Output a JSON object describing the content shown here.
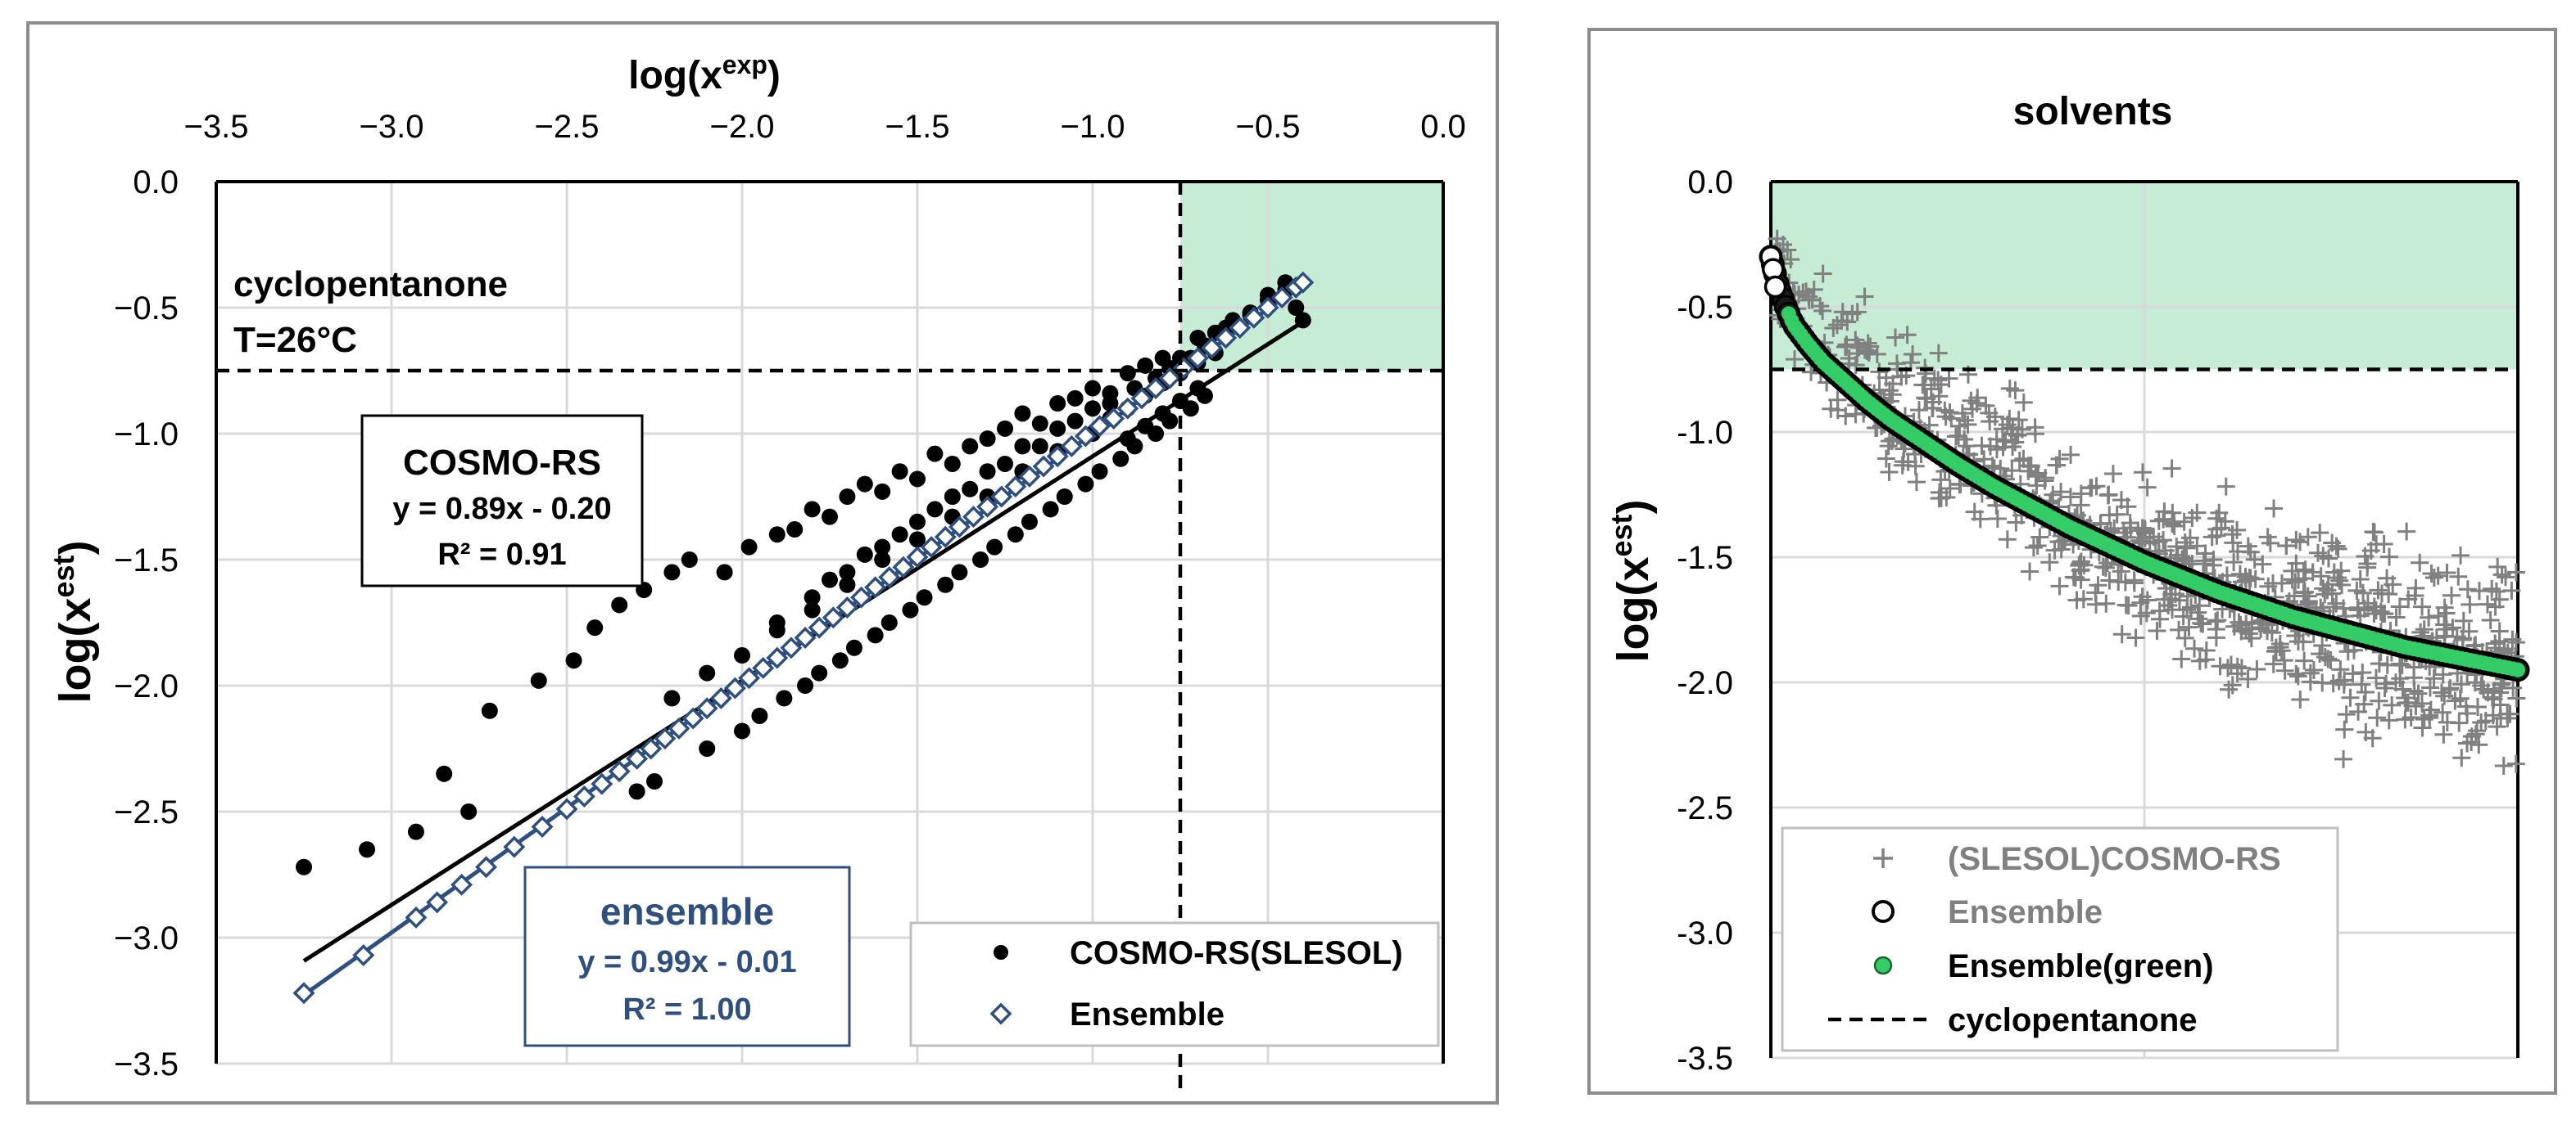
{
  "chart_data": [
    {
      "type": "scatter",
      "title": "",
      "xlabel": "log(x^exp)",
      "ylabel": "log(x^est)",
      "xlim": [
        -3.5,
        0.0
      ],
      "ylim": [
        -3.5,
        0.0
      ],
      "x_axis_position": "top",
      "x_tick_labels": [
        "−3.5",
        "−3.0",
        "−2.5",
        "−2.0",
        "−1.5",
        "−1.0",
        "−0.5",
        "0.0"
      ],
      "y_tick_labels": [
        "0.0",
        "−0.5",
        "−1.0",
        "−1.5",
        "−2.0",
        "−2.5",
        "−3.0",
        "−3.5"
      ],
      "x_ticks": [
        -3.5,
        -3.0,
        -2.5,
        -2.0,
        -1.5,
        -1.0,
        -0.5,
        0.0
      ],
      "y_ticks": [
        0.0,
        -0.5,
        -1.0,
        -1.5,
        -2.0,
        -2.5,
        -3.0,
        -3.5
      ],
      "threshold": {
        "x": -0.75,
        "y": -0.75,
        "style": "dashed",
        "shaded_region_color": "#c6ecd6"
      },
      "annotation": {
        "line1": "cyclopentanone",
        "line2": "T=26°C"
      },
      "fit_boxes": [
        {
          "name": "COSMO-RS",
          "equation": "y = 0.89x - 0.20",
          "r2": "R² = 0.91",
          "slope": 0.89,
          "intercept": -0.2,
          "color": "#000000"
        },
        {
          "name": "ensemble",
          "equation": "y = 0.99x - 0.01",
          "r2": "R² = 1.00",
          "slope": 0.99,
          "intercept": -0.01,
          "color": "#2f4f7f"
        }
      ],
      "series": [
        {
          "name": "COSMO-RS(SLESOL)",
          "marker": "filled-circle",
          "color": "#000000",
          "x": [
            -3.25,
            -3.07,
            -2.93,
            -2.85,
            -2.78,
            -2.72,
            -2.58,
            -2.48,
            -2.42,
            -2.35,
            -2.28,
            -2.2,
            -2.15,
            -2.05,
            -1.98,
            -1.9,
            -1.85,
            -1.8,
            -1.75,
            -1.7,
            -1.65,
            -1.6,
            -1.55,
            -1.5,
            -1.45,
            -1.4,
            -1.35,
            -1.3,
            -1.25,
            -1.2,
            -1.15,
            -1.1,
            -1.05,
            -1.0,
            -0.95,
            -0.9,
            -0.85,
            -0.8,
            -0.75,
            -0.7,
            -0.65,
            -0.6,
            -0.55,
            -0.5,
            -0.45,
            -2.3,
            -2.25,
            -2.1,
            -2.0,
            -1.95,
            -1.88,
            -1.82,
            -1.78,
            -1.72,
            -1.68,
            -1.62,
            -1.58,
            -1.52,
            -1.48,
            -1.42,
            -1.38,
            -1.32,
            -1.28,
            -1.22,
            -1.18,
            -1.12,
            -1.08,
            -1.02,
            -0.98,
            -0.92,
            -0.88,
            -0.82,
            -0.78,
            -0.72,
            -0.68,
            -1.9,
            -1.8,
            -1.7,
            -1.6,
            -1.5,
            -1.4,
            -1.3,
            -1.2,
            -1.1,
            -1.0,
            -0.9,
            -0.85,
            -0.8,
            -0.75,
            -0.7,
            -2.2,
            -2.1,
            -2.0,
            -1.9,
            -1.8,
            -1.7,
            -1.6,
            -1.5,
            -1.4,
            -1.3,
            -1.2,
            -1.1,
            -1.0,
            -0.95,
            -0.9,
            -0.85,
            -0.8,
            -0.75,
            -0.7,
            -0.65,
            -1.75,
            -1.65,
            -1.55,
            -1.45,
            -1.35,
            -1.25,
            -1.15,
            -1.05,
            -0.95,
            -0.88,
            -0.82,
            -0.78,
            -0.72,
            -0.68,
            -0.62,
            -0.55,
            -0.5,
            -0.45,
            -0.42,
            -0.4
          ],
          "y": [
            -2.72,
            -2.65,
            -2.58,
            -2.35,
            -2.5,
            -2.1,
            -1.98,
            -1.9,
            -1.77,
            -1.68,
            -1.62,
            -1.55,
            -1.5,
            -1.55,
            -1.45,
            -1.4,
            -1.38,
            -1.3,
            -1.33,
            -1.25,
            -1.2,
            -1.23,
            -1.15,
            -1.18,
            -1.08,
            -1.12,
            -1.05,
            -1.02,
            -0.98,
            -0.92,
            -0.96,
            -0.88,
            -0.86,
            -0.82,
            -0.84,
            -0.76,
            -0.73,
            -0.7,
            -0.7,
            -0.62,
            -0.6,
            -0.55,
            -0.53,
            -0.47,
            -0.43,
            -2.42,
            -2.38,
            -2.25,
            -2.18,
            -2.12,
            -2.05,
            -2.0,
            -1.95,
            -1.9,
            -1.85,
            -1.8,
            -1.75,
            -1.7,
            -1.65,
            -1.6,
            -1.55,
            -1.5,
            -1.45,
            -1.4,
            -1.35,
            -1.3,
            -1.25,
            -1.2,
            -1.15,
            -1.1,
            -1.05,
            -1.0,
            -0.95,
            -0.9,
            -0.85,
            -1.75,
            -1.65,
            -1.55,
            -1.45,
            -1.35,
            -1.25,
            -1.15,
            -1.05,
            -0.98,
            -0.9,
            -1.02,
            -0.97,
            -0.92,
            -0.87,
            -0.82,
            -2.05,
            -1.95,
            -1.88,
            -1.78,
            -1.7,
            -1.6,
            -1.5,
            -1.42,
            -1.33,
            -1.25,
            -1.15,
            -1.07,
            -1.0,
            -0.94,
            -0.9,
            -0.85,
            -0.8,
            -0.76,
            -0.72,
            -0.68,
            -1.58,
            -1.48,
            -1.4,
            -1.3,
            -1.22,
            -1.12,
            -1.05,
            -0.95,
            -0.88,
            -0.82,
            -0.78,
            -0.74,
            -0.7,
            -0.65,
            -0.58,
            -0.52,
            -0.45,
            -0.4,
            -0.5,
            -0.55
          ]
        },
        {
          "name": "Ensemble",
          "marker": "open-diamond",
          "color": "#2f4f7f",
          "x": [
            -3.25,
            -3.08,
            -2.93,
            -2.87,
            -2.8,
            -2.73,
            -2.65,
            -2.57,
            -2.5,
            -2.45,
            -2.4,
            -2.35,
            -2.3,
            -2.26,
            -2.22,
            -2.18,
            -2.14,
            -2.1,
            -2.06,
            -2.02,
            -1.98,
            -1.94,
            -1.9,
            -1.86,
            -1.82,
            -1.78,
            -1.74,
            -1.7,
            -1.66,
            -1.62,
            -1.58,
            -1.54,
            -1.5,
            -1.46,
            -1.42,
            -1.38,
            -1.34,
            -1.3,
            -1.26,
            -1.22,
            -1.18,
            -1.14,
            -1.1,
            -1.06,
            -1.02,
            -0.98,
            -0.94,
            -0.9,
            -0.86,
            -0.82,
            -0.78,
            -0.74,
            -0.7,
            -0.66,
            -0.62,
            -0.58,
            -0.54,
            -0.5,
            -0.46,
            -0.42,
            -0.4
          ],
          "y": [
            -3.22,
            -3.07,
            -2.92,
            -2.86,
            -2.79,
            -2.72,
            -2.64,
            -2.56,
            -2.49,
            -2.44,
            -2.39,
            -2.34,
            -2.29,
            -2.25,
            -2.21,
            -2.17,
            -2.13,
            -2.09,
            -2.05,
            -2.01,
            -1.97,
            -1.93,
            -1.89,
            -1.85,
            -1.81,
            -1.77,
            -1.73,
            -1.69,
            -1.65,
            -1.61,
            -1.57,
            -1.53,
            -1.49,
            -1.45,
            -1.41,
            -1.37,
            -1.33,
            -1.29,
            -1.25,
            -1.21,
            -1.17,
            -1.13,
            -1.09,
            -1.05,
            -1.01,
            -0.97,
            -0.94,
            -0.9,
            -0.86,
            -0.82,
            -0.78,
            -0.74,
            -0.7,
            -0.66,
            -0.62,
            -0.58,
            -0.54,
            -0.5,
            -0.46,
            -0.42,
            -0.4
          ]
        }
      ],
      "legend": {
        "position": "bottom-right",
        "entries": [
          "COSMO-RS(SLESOL)",
          "Ensemble"
        ]
      }
    },
    {
      "type": "scatter",
      "title": "solvents",
      "xlabel": "",
      "ylabel": "log(x^est)",
      "ylim": [
        -3.5,
        0.0
      ],
      "xlim": [
        0,
        1
      ],
      "y_tick_labels": [
        "0.0",
        "-0.5",
        "-1.0",
        "-1.5",
        "-2.0",
        "-2.5",
        "-3.0",
        "-3.5"
      ],
      "y_ticks": [
        0.0,
        -0.5,
        -1.0,
        -1.5,
        -2.0,
        -2.5,
        -3.0,
        -3.5
      ],
      "threshold": {
        "y": -0.75,
        "style": "dashed",
        "shaded_region_color": "#c6ecd6"
      },
      "series": [
        {
          "name": "(SLESOL)COSMO-RS",
          "marker": "plus",
          "color": "#808080",
          "description": "scattered around ensemble curve"
        },
        {
          "name": "Ensemble",
          "marker": "open-circle",
          "color": "#000000"
        },
        {
          "name": "Ensemble(green)",
          "marker": "filled-circle",
          "color": "#33cc66"
        },
        {
          "name": "cyclopentanone",
          "marker": "dashed-line",
          "color": "#000000"
        }
      ],
      "ensemble_curve": {
        "x": [
          0.0,
          0.01,
          0.02,
          0.03,
          0.05,
          0.07,
          0.1,
          0.13,
          0.16,
          0.2,
          0.25,
          0.3,
          0.35,
          0.4,
          0.45,
          0.5,
          0.55,
          0.6,
          0.65,
          0.7,
          0.75,
          0.8,
          0.85,
          0.9,
          0.95,
          1.0
        ],
        "y": [
          -0.3,
          -0.42,
          -0.5,
          -0.57,
          -0.65,
          -0.72,
          -0.8,
          -0.88,
          -0.95,
          -1.03,
          -1.13,
          -1.22,
          -1.3,
          -1.38,
          -1.45,
          -1.52,
          -1.58,
          -1.64,
          -1.69,
          -1.74,
          -1.78,
          -1.82,
          -1.86,
          -1.89,
          -1.92,
          -1.95
        ]
      },
      "legend": {
        "position": "bottom-left",
        "entries": [
          "(SLESOL)COSMO-RS",
          "Ensemble",
          "Ensemble(green)",
          "cyclopentanone"
        ]
      }
    }
  ]
}
